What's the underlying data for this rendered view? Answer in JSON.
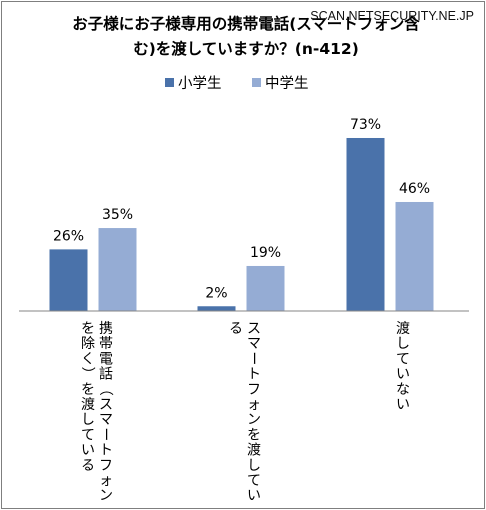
{
  "chart_data": {
    "type": "bar",
    "title": "お子様にお子様専用の携帯電話(スマートフォン含む)を渡していますか？(n-412)",
    "title_lines": [
      "お子様にお子様専用の携帯電話(スマートフォン含",
      "む)を渡していますか？(n-412)"
    ],
    "watermark": "SCAN.NETSECURITY.NE.JP",
    "categories": [
      "携帯電話（スマートフォンを除く）を渡している",
      "スマートフォンを渡している",
      "渡していない"
    ],
    "category_lines": [
      [
        "携帯電話（スマートフォン",
        "を除く）を渡している"
      ],
      [
        "スマートフォンを渡してい",
        "る"
      ],
      [
        "渡していない"
      ]
    ],
    "series": [
      {
        "name": "小学生",
        "values": [
          26,
          2,
          73
        ],
        "color": "#4a72aa"
      },
      {
        "name": "中学生",
        "values": [
          35,
          19,
          46
        ],
        "color": "#95acd4"
      }
    ],
    "value_suffix": "%",
    "ylim": [
      0,
      80
    ],
    "grid": false,
    "legend_position": "top-center"
  }
}
